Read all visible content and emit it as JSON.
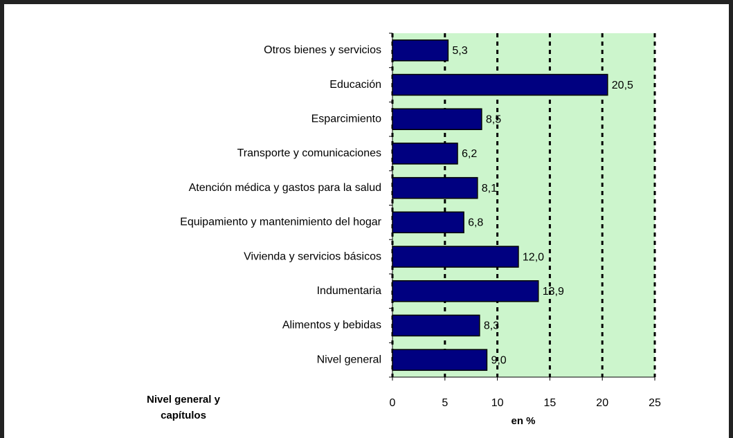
{
  "chart_data": {
    "type": "barh",
    "categories": [
      "Otros bienes y servicios",
      "Educación",
      "Esparcimiento",
      "Transporte y comunicaciones",
      "Atención médica y gastos para la salud",
      "Equipamiento y mantenimiento del hogar",
      "Vivienda y servicios básicos",
      "Indumentaria",
      "Alimentos y bebidas",
      "Nivel general"
    ],
    "values": [
      5.3,
      20.5,
      8.5,
      6.2,
      8.1,
      6.8,
      12.0,
      13.9,
      8.3,
      9.0
    ],
    "value_labels": [
      "5,3",
      "20,5",
      "8,5",
      "6,2",
      "8,1",
      "6,8",
      "12,0",
      "13,9",
      "8,3",
      "9,0"
    ],
    "color": "#000080",
    "xlim": [
      0,
      25
    ],
    "xticks": [
      0,
      5,
      10,
      15,
      20,
      25
    ],
    "xlabel": "en %",
    "ylabel": [
      "Nivel general y",
      "capítulos"
    ],
    "grid": true,
    "background": "#ccf5cc"
  }
}
